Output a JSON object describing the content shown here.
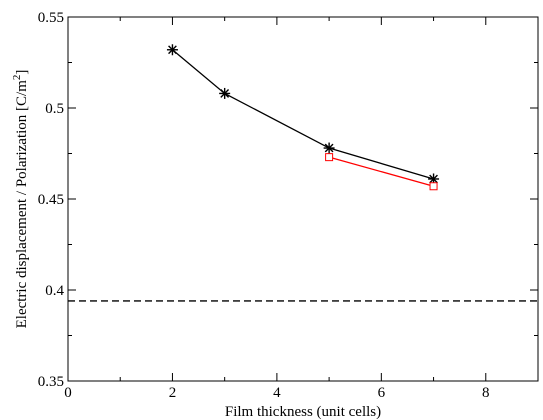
{
  "chart_data": {
    "type": "line",
    "title": "",
    "xlabel": "Film thickness (unit cells)",
    "ylabel": {
      "text": "Electric displacement / Polarization [C/m",
      "superscript": "2",
      "suffix": "]"
    },
    "xlim": [
      0,
      9
    ],
    "ylim": [
      0.35,
      0.55
    ],
    "x_ticks": [
      0,
      2,
      4,
      6,
      8
    ],
    "x_tick_labels": [
      "0",
      "2",
      "4",
      "6",
      "8"
    ],
    "y_ticks": [
      0.35,
      0.4,
      0.45,
      0.5,
      0.55
    ],
    "y_tick_labels": [
      "0.35",
      "0.4",
      "0.45",
      "0.5",
      "0.55"
    ],
    "grid": false,
    "series": [
      {
        "marker": "asterisk",
        "color": "#000000",
        "x": [
          2,
          3,
          5,
          7
        ],
        "y": [
          0.532,
          0.508,
          0.478,
          0.461
        ]
      },
      {
        "marker": "square",
        "color": "#ff0000",
        "x": [
          5,
          7
        ],
        "y": [
          0.473,
          0.457
        ]
      }
    ],
    "reference_lines": [
      {
        "orientation": "horizontal",
        "y": 0.394,
        "style": "dashed",
        "color": "#000000"
      }
    ]
  }
}
